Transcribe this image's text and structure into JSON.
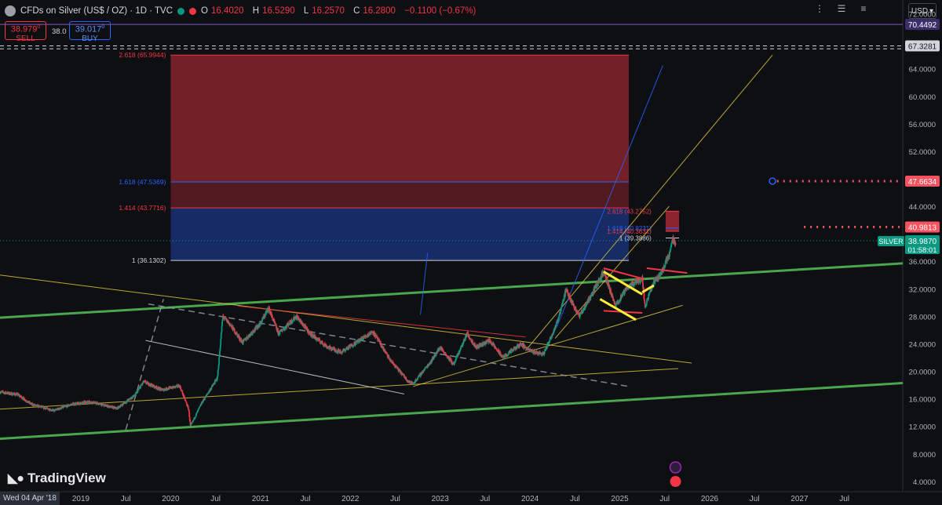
{
  "header": {
    "title": "CFDs on Silver (US$ / OZ) · 1D · TVC",
    "ohlc": [
      {
        "k": "O",
        "v": "16.4020"
      },
      {
        "k": "H",
        "v": "16.5290"
      },
      {
        "k": "L",
        "v": "16.2570"
      },
      {
        "k": "C",
        "v": "16.2800"
      }
    ],
    "change": "−0.1100 (−0.67%)"
  },
  "trade": {
    "sell_price": "38.979",
    "sell_sup": "0",
    "sell_label": "SELL",
    "spread": "38.0",
    "buy_price": "39.017",
    "buy_sup": "0",
    "buy_label": "BUY"
  },
  "currency": "USD",
  "logo": "TradingView",
  "date_tag": "Wed 04 Apr '18",
  "colors": {
    "bg": "#0e0f12",
    "up": "#089981",
    "down": "#f23645",
    "green_line": "#4caf50",
    "yellow_line": "#d9c13d",
    "fib_red": "#f23645",
    "fib_blue": "#2962ff"
  },
  "chart_data": {
    "type": "candlestick",
    "symbol": "SILVER",
    "y_ticks": [
      4,
      8,
      12,
      16,
      20,
      24,
      28,
      32,
      36,
      40,
      44,
      48,
      52,
      56,
      60,
      64,
      68,
      72
    ],
    "ylim": [
      2.5,
      74
    ],
    "x_ticks": [
      {
        "t": 2019.0,
        "label": "2019"
      },
      {
        "t": 2019.5,
        "label": "Jul"
      },
      {
        "t": 2020.0,
        "label": "2020"
      },
      {
        "t": 2020.5,
        "label": "Jul"
      },
      {
        "t": 2021.0,
        "label": "2021"
      },
      {
        "t": 2021.5,
        "label": "Jul"
      },
      {
        "t": 2022.0,
        "label": "2022"
      },
      {
        "t": 2022.5,
        "label": "Jul"
      },
      {
        "t": 2023.0,
        "label": "2023"
      },
      {
        "t": 2023.5,
        "label": "Jul"
      },
      {
        "t": 2024.0,
        "label": "2024"
      },
      {
        "t": 2024.5,
        "label": "Jul"
      },
      {
        "t": 2025.0,
        "label": "2025"
      },
      {
        "t": 2025.5,
        "label": "Jul"
      },
      {
        "t": 2026.0,
        "label": "2026"
      },
      {
        "t": 2026.5,
        "label": "Jul"
      },
      {
        "t": 2027.0,
        "label": "2027"
      },
      {
        "t": 2027.5,
        "label": "Jul"
      }
    ],
    "xlim": [
      2018.1,
      2028.15
    ],
    "price_path": [
      [
        2018.1,
        17.0
      ],
      [
        2018.3,
        16.6
      ],
      [
        2018.45,
        15.2
      ],
      [
        2018.7,
        14.3
      ],
      [
        2018.9,
        15.2
      ],
      [
        2019.1,
        15.6
      ],
      [
        2019.4,
        14.6
      ],
      [
        2019.6,
        16.5
      ],
      [
        2019.7,
        18.5
      ],
      [
        2019.9,
        17.3
      ],
      [
        2020.1,
        17.9
      ],
      [
        2020.2,
        14.5
      ],
      [
        2020.22,
        12.0
      ],
      [
        2020.35,
        15.5
      ],
      [
        2020.52,
        19.0
      ],
      [
        2020.58,
        28.0
      ],
      [
        2020.65,
        27.0
      ],
      [
        2020.8,
        24.2
      ],
      [
        2021.0,
        27.0
      ],
      [
        2021.09,
        29.2
      ],
      [
        2021.2,
        25.5
      ],
      [
        2021.4,
        28.0
      ],
      [
        2021.55,
        25.5
      ],
      [
        2021.75,
        23.5
      ],
      [
        2021.9,
        22.8
      ],
      [
        2022.1,
        24.5
      ],
      [
        2022.25,
        25.8
      ],
      [
        2022.45,
        21.5
      ],
      [
        2022.65,
        18.5
      ],
      [
        2022.7,
        18.2
      ],
      [
        2022.9,
        21.5
      ],
      [
        2023.0,
        23.5
      ],
      [
        2023.15,
        21.0
      ],
      [
        2023.3,
        25.5
      ],
      [
        2023.4,
        23.5
      ],
      [
        2023.55,
        24.5
      ],
      [
        2023.7,
        22.0
      ],
      [
        2023.9,
        24.0
      ],
      [
        2024.0,
        23.0
      ],
      [
        2024.15,
        22.5
      ],
      [
        2024.3,
        27.0
      ],
      [
        2024.4,
        31.8
      ],
      [
        2024.55,
        28.0
      ],
      [
        2024.7,
        31.5
      ],
      [
        2024.82,
        34.5
      ],
      [
        2024.95,
        29.5
      ],
      [
        2025.1,
        32.5
      ],
      [
        2025.25,
        33.5
      ],
      [
        2025.28,
        29.5
      ],
      [
        2025.38,
        33.0
      ],
      [
        2025.45,
        34.0
      ],
      [
        2025.55,
        37.0
      ],
      [
        2025.58,
        39.2
      ],
      [
        2025.62,
        38.8
      ]
    ],
    "horizontal_lines": [
      {
        "price": 70.4492,
        "label": "70.4492",
        "color": "#7e57c2",
        "style": "solid"
      },
      {
        "price": 67.3281,
        "label": "67.3281",
        "color": "#d1d4dc",
        "style": "dashed"
      },
      {
        "price": 66.9,
        "label": "",
        "color": "#d1d4dc",
        "style": "dashed"
      }
    ],
    "dotted_targets": [
      {
        "price": 47.6634,
        "label": "47.6634",
        "from": 2026.75
      },
      {
        "price": 40.9813,
        "label": "40.9813",
        "from": 2027.05
      }
    ],
    "current_price": {
      "price": 38.987,
      "label": "38.9870",
      "countdown": "01:58:01",
      "symbol": "SILVER"
    },
    "fib_main": {
      "x0": 2020.0,
      "x1": 2025.1,
      "levels": [
        {
          "ratio": "2.618",
          "price": 65.9944,
          "color": "#f23645"
        },
        {
          "ratio": "1.618",
          "price": 47.5369,
          "color": "#2962ff"
        },
        {
          "ratio": "1.414",
          "price": 43.7716,
          "color": "#f23645"
        },
        {
          "ratio": "1",
          "price": 36.1302,
          "color": "#d1d4dc"
        }
      ]
    },
    "fib_small": {
      "x0": 2024.95,
      "x1": 2025.66,
      "levels": [
        {
          "ratio": "2.618",
          "price": 43.2752,
          "color": "#f23645"
        },
        {
          "ratio": "1.618",
          "price": 40.8231,
          "color": "#2962ff"
        },
        {
          "ratio": "1.414",
          "price": 40.3631,
          "color": "#f23645"
        },
        {
          "ratio": "1",
          "price": 39.3886,
          "color": "#d1d4dc"
        }
      ]
    },
    "trendlines": [
      {
        "p1": [
          2018.1,
          27.8
        ],
        "p2": [
          2028.15,
          35.7
        ],
        "color": "#4caf50",
        "width": 3
      },
      {
        "p1": [
          2018.1,
          10.2
        ],
        "p2": [
          2028.15,
          18.3
        ],
        "color": "#4caf50",
        "width": 3
      },
      {
        "p1": [
          2018.1,
          34.0
        ],
        "p2": [
          2025.8,
          21.2
        ],
        "color": "#d9c13d",
        "width": 1
      },
      {
        "p1": [
          2018.1,
          14.5
        ],
        "p2": [
          2025.65,
          20.4
        ],
        "color": "#d9c13d",
        "width": 1
      },
      {
        "p1": [
          2022.7,
          17.8
        ],
        "p2": [
          2025.7,
          29.6
        ],
        "color": "#d9c13d",
        "width": 1
      },
      {
        "p1": [
          2023.95,
          23.0
        ],
        "p2": [
          2026.7,
          66.0
        ],
        "color": "#d9c13d",
        "width": 1
      },
      {
        "p1": [
          2024.28,
          24.8
        ],
        "p2": [
          2025.55,
          44.0
        ],
        "color": "#d9c13d",
        "width": 1
      },
      {
        "p1": [
          2024.3,
          26.5
        ],
        "p2": [
          2025.48,
          64.5
        ],
        "color": "#2962ff",
        "width": 1
      },
      {
        "p1": [
          2022.78,
          28.2
        ],
        "p2": [
          2022.86,
          37.2
        ],
        "color": "#2962ff",
        "width": 1
      },
      {
        "p1": [
          2020.75,
          29.5
        ],
        "p2": [
          2023.95,
          25.0
        ],
        "color": "#f23645",
        "width": 1
      },
      {
        "p1": [
          2019.72,
          24.5
        ],
        "p2": [
          2022.6,
          16.7
        ],
        "color": "#d1d4dc",
        "width": 1
      },
      {
        "p1": [
          2019.75,
          29.8
        ],
        "p2": [
          2025.1,
          17.8
        ],
        "color": "#9598a1",
        "width": 1.5,
        "dash": "8,5"
      },
      {
        "p1": [
          2019.5,
          11.5
        ],
        "p2": [
          2019.92,
          30.5
        ],
        "color": "#9598a1",
        "width": 1.5,
        "dash": "8,5"
      }
    ],
    "channel": [
      {
        "p1": [
          2024.82,
          35.0
        ],
        "p2": [
          2025.25,
          33.5
        ],
        "color": "#f23645"
      },
      {
        "p1": [
          2024.82,
          28.8
        ],
        "p2": [
          2025.25,
          28.5
        ],
        "color": "#f23645"
      },
      {
        "p1": [
          2025.3,
          35.0
        ],
        "p2": [
          2025.75,
          34.3
        ],
        "color": "#f23645"
      },
      {
        "p1": [
          2024.82,
          34.5
        ],
        "p2": [
          2025.25,
          31.2
        ],
        "color": "#ffeb3b"
      },
      {
        "p1": [
          2024.78,
          30.5
        ],
        "p2": [
          2025.18,
          27.5
        ],
        "color": "#ffeb3b"
      },
      {
        "p1": [
          2025.25,
          31.5
        ],
        "p2": [
          2025.38,
          32.5
        ],
        "color": "#ffeb3b"
      }
    ]
  }
}
